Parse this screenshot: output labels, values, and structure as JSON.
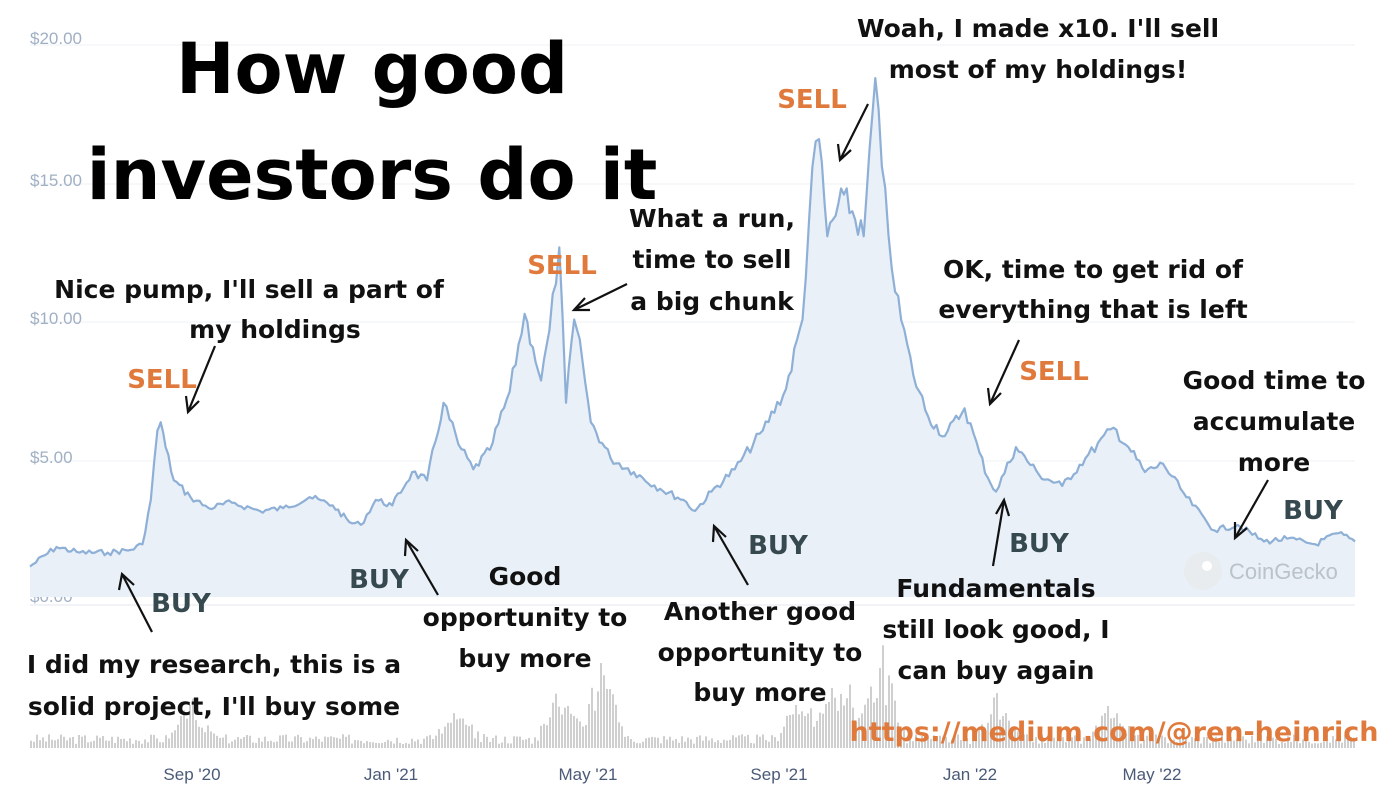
{
  "chart_data": {
    "type": "line",
    "title": "How good investors do it",
    "yticks": [
      "$0.00",
      "$5.00",
      "$10.00",
      "$15.00",
      "$20.00"
    ],
    "ylim": [
      0,
      20
    ],
    "xticks": [
      "Sep '20",
      "Jan '21",
      "May '21",
      "Sep '21",
      "Jan '22",
      "May '22"
    ],
    "grid": true,
    "series": [
      {
        "x": [
          "2020-06-15",
          "2020-07-01",
          "2020-07-15",
          "2020-08-01",
          "2020-08-15",
          "2020-08-22",
          "2020-08-27",
          "2020-08-31",
          "2020-09-02",
          "2020-09-05",
          "2020-09-10",
          "2020-09-20",
          "2020-10-01",
          "2020-10-15",
          "2020-11-01",
          "2020-11-15",
          "2020-12-01",
          "2020-12-15",
          "2020-12-25",
          "2021-01-01",
          "2021-01-10",
          "2021-01-20",
          "2021-02-01",
          "2021-02-10",
          "2021-02-20",
          "2021-03-01",
          "2021-03-10",
          "2021-03-20",
          "2021-04-01",
          "2021-04-10",
          "2021-04-15",
          "2021-04-20",
          "2021-04-25",
          "2021-05-01",
          "2021-05-05",
          "2021-05-10",
          "2021-05-15",
          "2021-05-20",
          "2021-06-01",
          "2021-06-15",
          "2021-07-01",
          "2021-07-15",
          "2021-07-22",
          "2021-08-01",
          "2021-08-15",
          "2021-09-01",
          "2021-09-15",
          "2021-09-25",
          "2021-10-01",
          "2021-10-05",
          "2021-10-10",
          "2021-10-20",
          "2021-11-01",
          "2021-11-08",
          "2021-11-12",
          "2021-11-20",
          "2021-12-01",
          "2021-12-10",
          "2021-12-20",
          "2022-01-01",
          "2022-01-10",
          "2022-01-15",
          "2022-01-20",
          "2022-02-01",
          "2022-02-15",
          "2022-03-01",
          "2022-03-15",
          "2022-04-01",
          "2022-04-10",
          "2022-04-20",
          "2022-05-01",
          "2022-05-15",
          "2022-06-01",
          "2022-06-15",
          "2022-07-01",
          "2022-07-15",
          "2022-08-01",
          "2022-08-15",
          "2022-08-25"
        ],
        "values": [
          1.1,
          1.8,
          1.6,
          1.6,
          1.7,
          1.9,
          3.5,
          6.0,
          6.3,
          5.4,
          4.2,
          3.6,
          3.2,
          3.4,
          3.1,
          3.2,
          3.6,
          3.3,
          2.7,
          2.6,
          3.5,
          3.3,
          4.5,
          4.2,
          7.0,
          5.5,
          4.6,
          5.3,
          7.4,
          10.2,
          9.0,
          7.8,
          9.6,
          12.6,
          7.0,
          10.0,
          8.5,
          6.3,
          5.0,
          4.5,
          3.9,
          3.5,
          3.1,
          3.8,
          4.6,
          6.0,
          7.5,
          10.0,
          15.5,
          16.5,
          13.0,
          14.5,
          13.0,
          18.7,
          15.5,
          11.0,
          8.0,
          6.5,
          5.8,
          6.8,
          5.2,
          4.3,
          3.8,
          5.4,
          4.4,
          4.0,
          5.0,
          6.1,
          5.4,
          4.5,
          4.8,
          3.6,
          2.4,
          2.6,
          2.0,
          2.1,
          1.9,
          2.3,
          2.0
        ]
      }
    ],
    "annotations_buy": [
      "BUY",
      "BUY",
      "BUY",
      "BUY",
      "BUY"
    ],
    "annotations_sell": [
      "SELL",
      "SELL",
      "SELL",
      "SELL"
    ]
  },
  "notes": {
    "n1a": "I did my research, this is a",
    "n1b": "solid project, I'll buy some",
    "n2a": "Nice pump, I'll sell a part of",
    "n2b": "my holdings",
    "n3a": "Good",
    "n3b": "opportunity to",
    "n3c": "buy more",
    "n4a": "What a run,",
    "n4b": "time to sell",
    "n4c": "a big chunk",
    "n5a": "Another good",
    "n5b": "opportunity to",
    "n5c": "buy more",
    "n6a": "Woah, I made x10. I'll sell",
    "n6b": "most of my holdings!",
    "n7a": "OK, time to get rid of",
    "n7b": "everything that is left",
    "n8a": "Fundamentals",
    "n8b": "still look good, I",
    "n8c": "can buy again",
    "n9a": "Good time to",
    "n9b": "accumulate",
    "n9c": "more"
  },
  "title_lines": [
    "How good",
    "investors do it"
  ],
  "url": "https://medium.com/@ren-heinrich",
  "watermark": "CoinGecko",
  "colors": {
    "line": "#8fb0d6",
    "fill": "#e9f0f8",
    "sell": "#e07a3c",
    "buy": "#36494f",
    "volume": "#cfcfcf"
  }
}
